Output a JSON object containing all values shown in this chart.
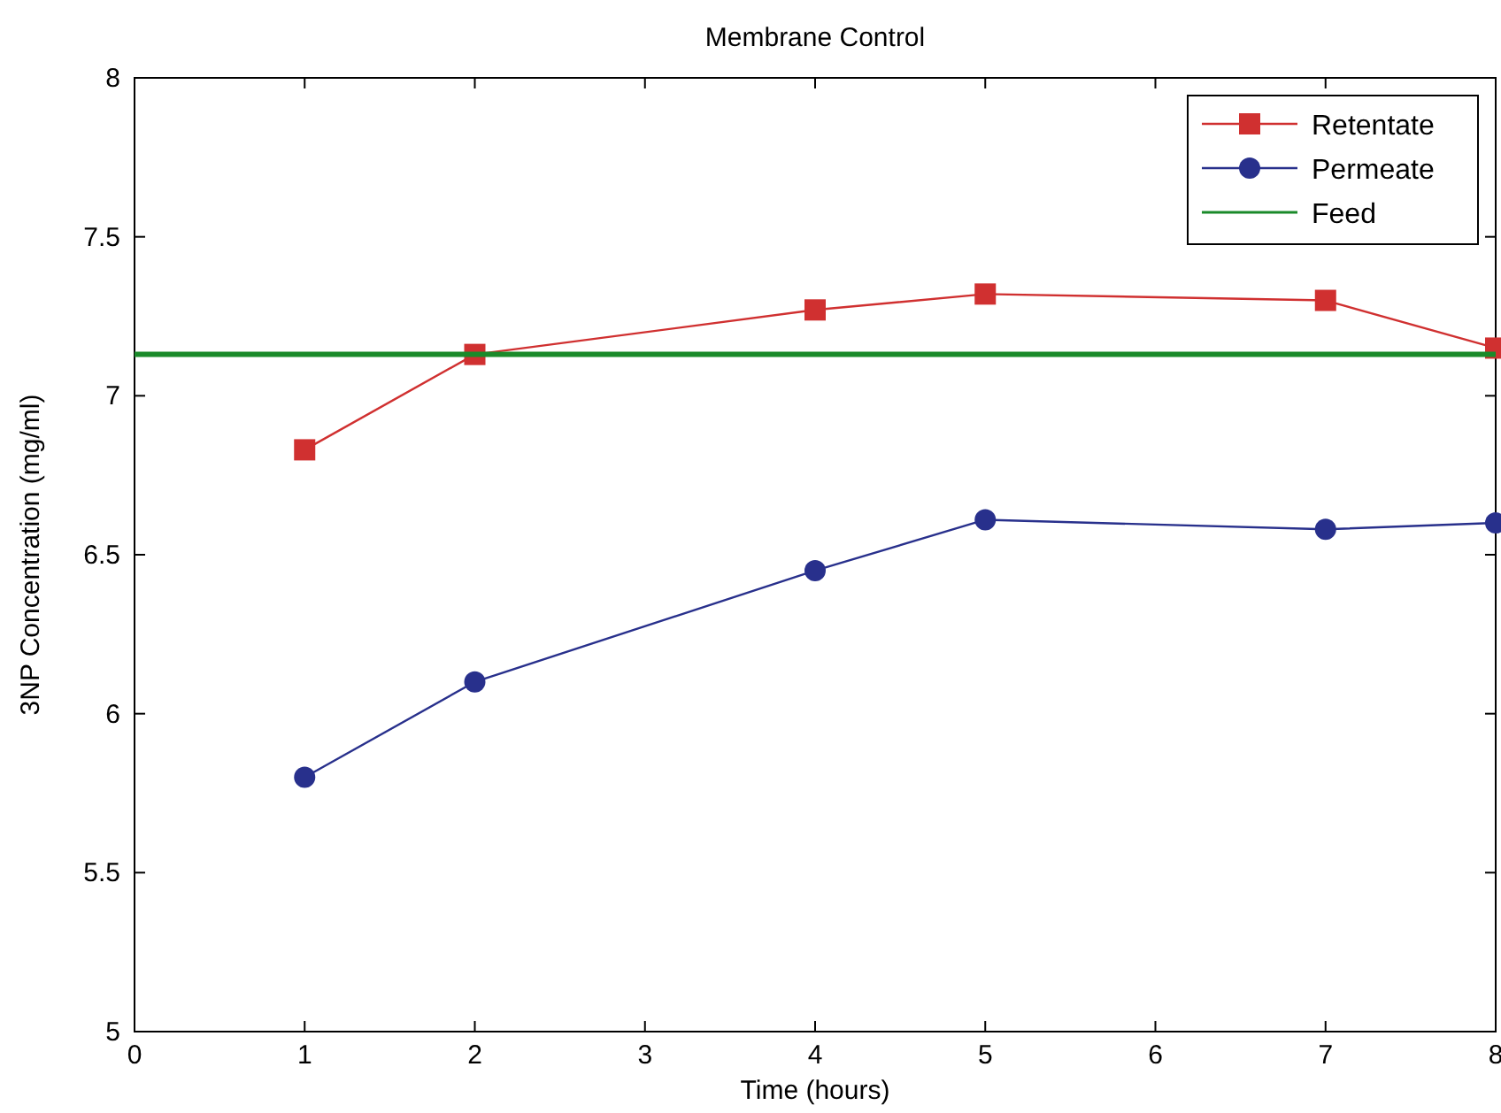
{
  "chart_data": {
    "type": "line",
    "title": "Membrane Control",
    "xlabel": "Time (hours)",
    "ylabel": "3NP Concentration (mg/ml)",
    "xlim": [
      0,
      8
    ],
    "xticks": [
      0,
      1,
      2,
      3,
      4,
      5,
      6,
      7,
      8
    ],
    "ylim": [
      5,
      8
    ],
    "yticks": [
      5,
      5.5,
      6,
      6.5,
      7,
      7.5,
      8
    ],
    "grid": false,
    "legend": "top right",
    "series": [
      {
        "name": "Retentate",
        "color": "#d03030",
        "marker": "square",
        "x": [
          1,
          2,
          4,
          5,
          7,
          8
        ],
        "values": [
          6.83,
          7.13,
          7.27,
          7.32,
          7.3,
          7.15
        ]
      },
      {
        "name": "Permeate",
        "color": "#28308c",
        "marker": "circle",
        "x": [
          1,
          2,
          4,
          5,
          7,
          8
        ],
        "values": [
          5.8,
          6.1,
          6.45,
          6.61,
          6.58,
          6.6
        ]
      },
      {
        "name": "Feed",
        "color": "#1a8a2a",
        "marker": "none",
        "x": [
          0,
          8
        ],
        "values": [
          7.13,
          7.13
        ]
      }
    ]
  }
}
